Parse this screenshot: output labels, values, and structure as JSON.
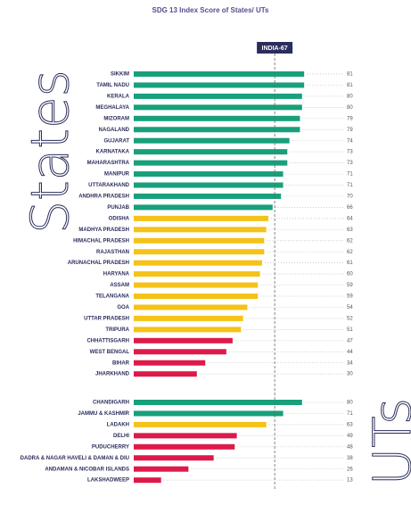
{
  "chart_data": [
    {
      "type": "bar",
      "title": "SDG 13 Index Score of States/ UTs",
      "group_label": "States",
      "reference_line": {
        "value": 67,
        "label": "INDIA-67"
      },
      "categories": [
        "SIKKIM",
        "TAMIL NADU",
        "KERALA",
        "MEGHALAYA",
        "MIZORAM",
        "NAGALAND",
        "GUJARAT",
        "KARNATAKA",
        "MAHARASHTRA",
        "MANIPUR",
        "UTTARAKHAND",
        "ANDHRA PRADESH",
        "PUNJAB",
        "ODISHA",
        "MADHYA PRADESH",
        "HIMACHAL PRADESH",
        "RAJASTHAN",
        "ARUNACHAL PRADESH",
        "HARYANA",
        "ASSAM",
        "TELANGANA",
        "GOA",
        "UTTAR PRADESH",
        "TRIPURA",
        "CHHATTISGARH",
        "WEST BENGAL",
        "BIHAR",
        "JHARKHAND"
      ],
      "values": [
        81,
        81,
        80,
        80,
        79,
        79,
        74,
        73,
        73,
        71,
        71,
        70,
        66,
        64,
        63,
        62,
        62,
        61,
        60,
        59,
        59,
        54,
        52,
        51,
        47,
        44,
        34,
        30
      ],
      "colors": [
        "#17a07b",
        "#17a07b",
        "#17a07b",
        "#17a07b",
        "#17a07b",
        "#17a07b",
        "#17a07b",
        "#17a07b",
        "#17a07b",
        "#17a07b",
        "#17a07b",
        "#17a07b",
        "#17a07b",
        "#f5c218",
        "#f5c218",
        "#f5c218",
        "#f5c218",
        "#f5c218",
        "#f5c218",
        "#f5c218",
        "#f5c218",
        "#f5c218",
        "#f5c218",
        "#f5c218",
        "#de1a4b",
        "#de1a4b",
        "#de1a4b",
        "#de1a4b"
      ]
    },
    {
      "type": "bar",
      "group_label": "UTs",
      "categories": [
        "CHANDIGARH",
        "JAMMU & KASHMIR",
        "LADAKH",
        "DELHI",
        "PUDUCHERRY",
        "DADRA & NAGAR HAVELI & DAMAN & DIU",
        "ANDAMAN & NICOBAR ISLANDS",
        "LAKSHADWEEP"
      ],
      "values": [
        80,
        71,
        63,
        49,
        48,
        38,
        26,
        13
      ],
      "colors": [
        "#17a07b",
        "#17a07b",
        "#f5c218",
        "#de1a4b",
        "#de1a4b",
        "#de1a4b",
        "#de1a4b",
        "#de1a4b"
      ]
    }
  ]
}
